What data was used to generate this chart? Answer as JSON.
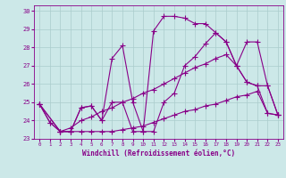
{
  "xlabel": "Windchill (Refroidissement éolien,°C)",
  "bg_color": "#cce8e8",
  "line_color": "#880088",
  "grid_color": "#aacccc",
  "xlim": [
    0,
    23
  ],
  "ylim": [
    23,
    30
  ],
  "xticks": [
    0,
    1,
    2,
    3,
    4,
    5,
    6,
    7,
    8,
    9,
    10,
    11,
    12,
    13,
    14,
    15,
    16,
    17,
    18,
    19,
    20,
    21,
    22,
    23
  ],
  "yticks": [
    23,
    24,
    25,
    26,
    27,
    28,
    29,
    30
  ],
  "series1_x": [
    0,
    1,
    2,
    3,
    4,
    5,
    6,
    7,
    8,
    9,
    10,
    11,
    12,
    13,
    14,
    15,
    16,
    17,
    18,
    19,
    20,
    21,
    22,
    23
  ],
  "series1_y": [
    24.9,
    23.9,
    23.4,
    23.4,
    24.7,
    24.8,
    24.0,
    27.4,
    28.1,
    25.0,
    23.4,
    28.9,
    29.7,
    29.7,
    29.6,
    29.3,
    29.3,
    28.8,
    28.3,
    27.0,
    26.1,
    25.9,
    24.4,
    24.3
  ],
  "series2_x": [
    0,
    2,
    3,
    4,
    5,
    6,
    7,
    8,
    9,
    10,
    11,
    12,
    13,
    14,
    15,
    16,
    17,
    18,
    19,
    20,
    21,
    22,
    23
  ],
  "series2_y": [
    24.9,
    23.4,
    23.4,
    24.7,
    24.8,
    24.0,
    25.0,
    25.0,
    23.4,
    23.4,
    23.4,
    25.0,
    25.5,
    27.0,
    27.5,
    28.2,
    28.8,
    28.3,
    27.0,
    28.3,
    28.3,
    25.9,
    24.3
  ],
  "series3_x": [
    0,
    1,
    2,
    3,
    4,
    5,
    6,
    7,
    8,
    9,
    10,
    11,
    12,
    13,
    14,
    15,
    16,
    17,
    18,
    19,
    20,
    21,
    22,
    23
  ],
  "series3_y": [
    24.9,
    23.9,
    23.4,
    23.4,
    23.4,
    23.4,
    23.4,
    23.4,
    23.5,
    23.6,
    23.7,
    23.9,
    24.1,
    24.3,
    24.5,
    24.6,
    24.8,
    24.9,
    25.1,
    25.3,
    25.4,
    25.6,
    24.4,
    24.3
  ],
  "series4_x": [
    0,
    2,
    3,
    4,
    5,
    6,
    7,
    8,
    9,
    10,
    11,
    12,
    13,
    14,
    15,
    16,
    17,
    18,
    19,
    20,
    21,
    22,
    23
  ],
  "series4_y": [
    24.9,
    23.4,
    23.6,
    24.0,
    24.2,
    24.5,
    24.7,
    25.0,
    25.2,
    25.5,
    25.7,
    26.0,
    26.3,
    26.6,
    26.9,
    27.1,
    27.4,
    27.6,
    27.0,
    26.1,
    25.9,
    25.9,
    24.3
  ]
}
